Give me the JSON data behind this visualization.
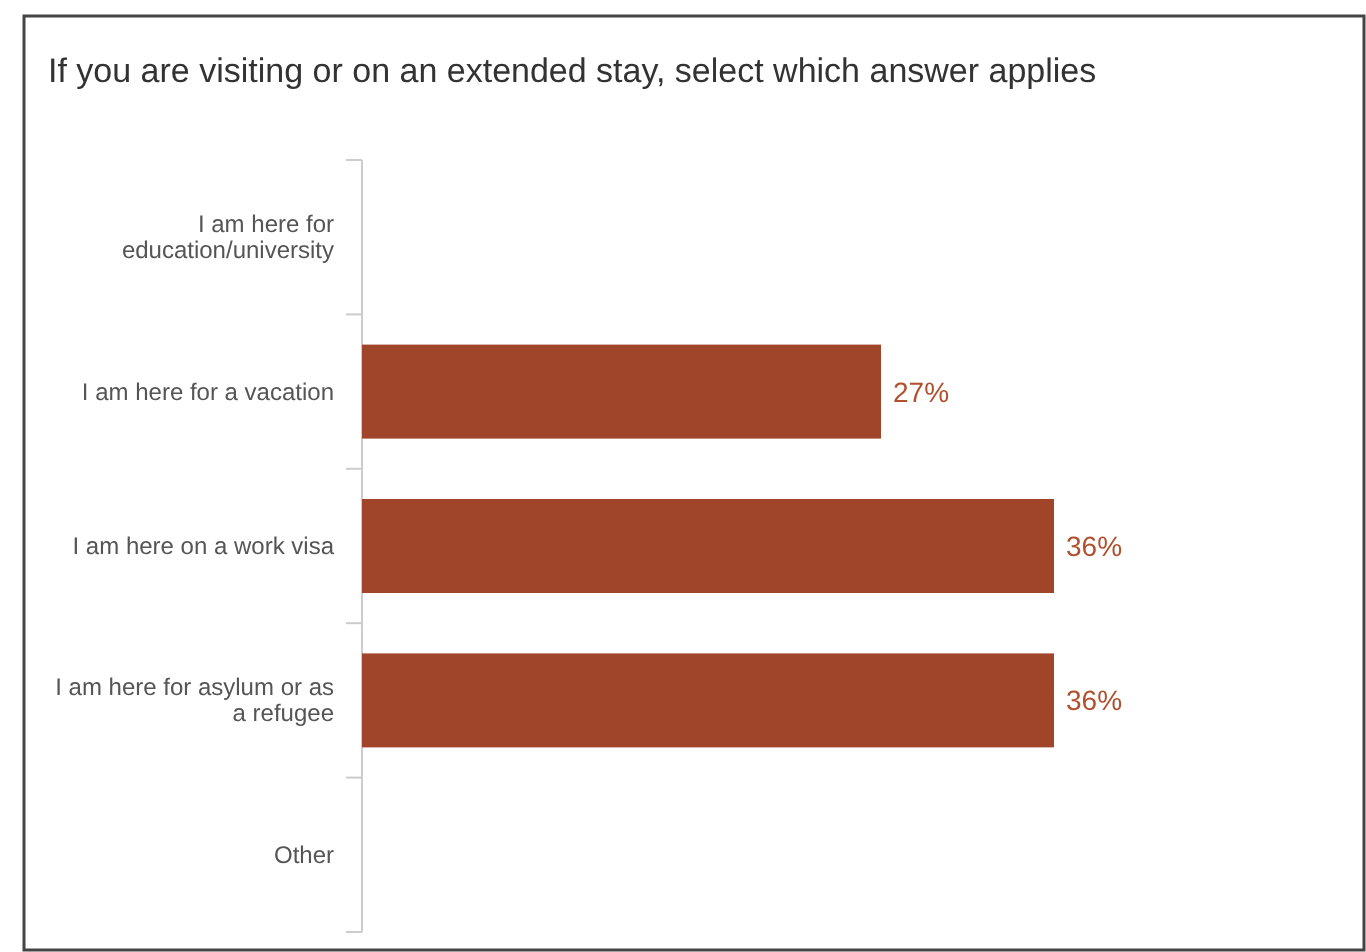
{
  "chart_data": {
    "type": "bar",
    "orientation": "horizontal",
    "title": "If you are visiting or on an extended stay, select which answer applies",
    "categories": [
      "I am here for education/university",
      "I am here for a vacation",
      "I am here on a work visa",
      "I am here for asylum or as a refugee",
      "Other"
    ],
    "values": [
      0,
      27,
      36,
      36,
      0
    ],
    "value_labels": [
      null,
      "27%",
      "36%",
      "36%",
      null
    ],
    "color": "#a0442a"
  }
}
